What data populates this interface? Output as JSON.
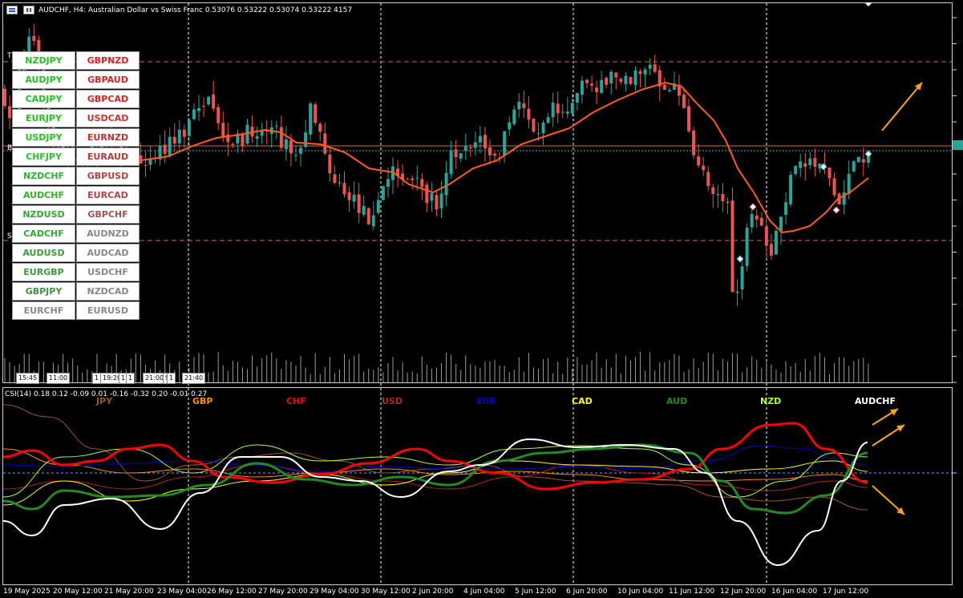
{
  "window": {
    "symbol_info": "AUDCHF, H4:  Australian Dollar vs Swiss Franc  0.53076 0.53222 0.53074 0.53222  4157"
  },
  "pair_buttons": [
    {
      "label": "NZDJPY",
      "color": "#22c422"
    },
    {
      "label": "GBPNZD",
      "color": "#e02020"
    },
    {
      "label": "AUDJPY",
      "color": "#22c422"
    },
    {
      "label": "GBPAUD",
      "color": "#e02020"
    },
    {
      "label": "CADJPY",
      "color": "#22c422"
    },
    {
      "label": "GBPCAD",
      "color": "#e02020"
    },
    {
      "label": "EURJPY",
      "color": "#22c422"
    },
    {
      "label": "USDCAD",
      "color": "#d03030"
    },
    {
      "label": "USDJPY",
      "color": "#22c422"
    },
    {
      "label": "EURNZD",
      "color": "#c03030"
    },
    {
      "label": "CHFJPY",
      "color": "#28c428"
    },
    {
      "label": "EURAUD",
      "color": "#c03535"
    },
    {
      "label": "NZDCHF",
      "color": "#2eb42e"
    },
    {
      "label": "GBPUSD",
      "color": "#b84040"
    },
    {
      "label": "AUDCHF",
      "color": "#2eb42e"
    },
    {
      "label": "EURCAD",
      "color": "#b84040"
    },
    {
      "label": "NZDUSD",
      "color": "#34a834"
    },
    {
      "label": "GBPCHF",
      "color": "#a85050"
    },
    {
      "label": "CADCHF",
      "color": "#34a834"
    },
    {
      "label": "AUDNZD",
      "color": "#888888"
    },
    {
      "label": "AUDUSD",
      "color": "#3c9c3c"
    },
    {
      "label": "AUDCAD",
      "color": "#888888"
    },
    {
      "label": "EURGBP",
      "color": "#3c9c3c"
    },
    {
      "label": "USDCHF",
      "color": "#888888"
    },
    {
      "label": "GBPJPY",
      "color": "#449044"
    },
    {
      "label": "NZDCAD",
      "color": "#888888"
    },
    {
      "label": "EURCHF",
      "color": "#888888"
    },
    {
      "label": "EURUSD",
      "color": "#888888"
    }
  ],
  "time_boxes": [
    "15:45",
    "11:00",
    "1",
    "19:20",
    "1",
    "1",
    "21:00",
    "9",
    "1",
    "21:40"
  ],
  "csi": {
    "header": "CSI(14) 0.18 0.12 -0.09 0.01 -0.16 -0.32 0.20 -0.01 0.27",
    "currencies": [
      {
        "label": "JPY",
        "color": "#a0522d"
      },
      {
        "label": "GBP",
        "color": "#ff8c00"
      },
      {
        "label": "CHF",
        "color": "#ff0000"
      },
      {
        "label": "USD",
        "color": "#b22222"
      },
      {
        "label": "EUR",
        "color": "#0000cd"
      },
      {
        "label": "CAD",
        "color": "#ffff00"
      },
      {
        "label": "AUD",
        "color": "#228b22"
      },
      {
        "label": "NZD",
        "color": "#adff2f"
      },
      {
        "label": "AUDCHF",
        "color": "#ffffff"
      }
    ]
  },
  "dates": [
    "19 May 2025",
    "20 May 12:00",
    "21 May 20:00",
    "23 May 04:00",
    "26 May 12:00",
    "27 May 20:00",
    "29 May 04:00",
    "30 May 12:00",
    "2 Jun 20:00",
    "4 Jun 04:00",
    "5 Jun 12:00",
    "6 Jun 20:00",
    "10 Jun 04:00",
    "11 Jun 12:00",
    "12 Jun 20:00",
    "16 Jun 04:00",
    "17 Jun 12:00"
  ],
  "colors": {
    "bull": "#26a69a",
    "bear": "#ef5350",
    "ma": "#ff5a1f",
    "arrow": "#ffa500",
    "grid": "#ffffff",
    "level": "#d2693c"
  }
}
